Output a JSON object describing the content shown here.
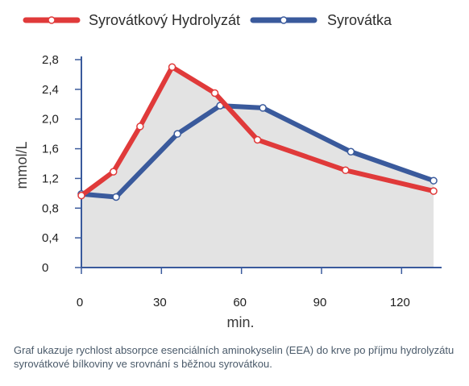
{
  "chart_data": {
    "type": "line",
    "xlabel": "min.",
    "ylabel": "mmol/L",
    "xlim": [
      0,
      135
    ],
    "ylim": [
      0,
      2.8
    ],
    "x_ticks": [
      0,
      30,
      60,
      90,
      120
    ],
    "y_ticks": [
      0,
      0.4,
      0.8,
      1.2,
      1.6,
      2.0,
      2.4,
      2.8
    ],
    "x_tick_labels": [
      "0",
      "30",
      "60",
      "90",
      "120"
    ],
    "y_tick_labels": [
      "0",
      "0,4",
      "0,8",
      "1,2",
      "1,6",
      "2,0",
      "2,4",
      "2,8"
    ],
    "grid": false,
    "legend_position": "top",
    "series": [
      {
        "name": "Syrovátkový  Hydrolyzát",
        "color": "#e03a3a",
        "x": [
          0,
          12,
          22,
          34,
          50,
          66,
          99,
          132
        ],
        "y": [
          0.97,
          1.29,
          1.9,
          2.7,
          2.35,
          1.72,
          1.31,
          1.03
        ]
      },
      {
        "name": "Syrovátka",
        "color": "#3a5a9c",
        "x": [
          0,
          13,
          36,
          52,
          68,
          101,
          132
        ],
        "y": [
          0.99,
          0.95,
          1.8,
          2.18,
          2.15,
          1.56,
          1.17
        ]
      }
    ],
    "fill_color": "#e3e3e3"
  },
  "caption": "Graf ukazuje rychlost absorpce esenciálních aminokyselin (EEA) do krve po příjmu hydrolyzátu syrovátkové bílkoviny ve srovnání s běžnou syrovátkou."
}
